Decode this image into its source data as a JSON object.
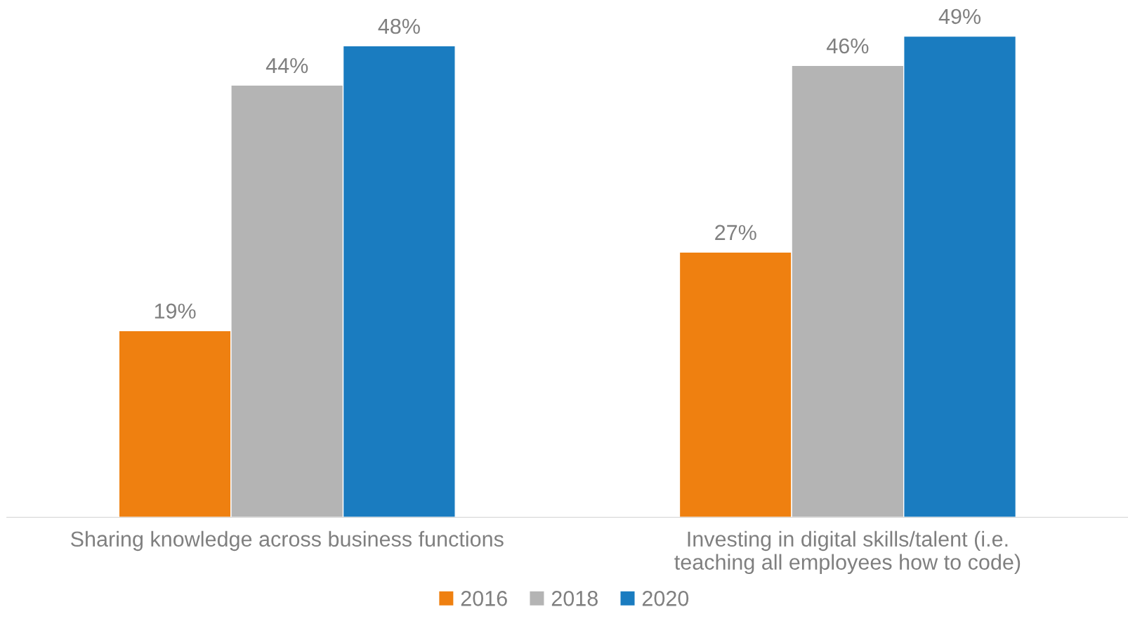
{
  "chart_data": {
    "type": "bar",
    "categories": [
      "Sharing knowledge across business functions",
      "Investing in digital skills/talent (i.e. teaching all employees how to code)"
    ],
    "series": [
      {
        "name": "2016",
        "color": "#ef8010",
        "values": [
          19,
          27
        ],
        "value_labels": [
          "19%",
          "27%"
        ]
      },
      {
        "name": "2018",
        "color": "#b4b4b4",
        "values": [
          44,
          46
        ],
        "value_labels": [
          "44%",
          "46%"
        ]
      },
      {
        "name": "2020",
        "color": "#1a7cc0",
        "values": [
          48,
          49
        ],
        "value_labels": [
          "48%",
          "49%"
        ]
      }
    ],
    "relative": false,
    "legend": "bottom",
    "grid": false
  }
}
